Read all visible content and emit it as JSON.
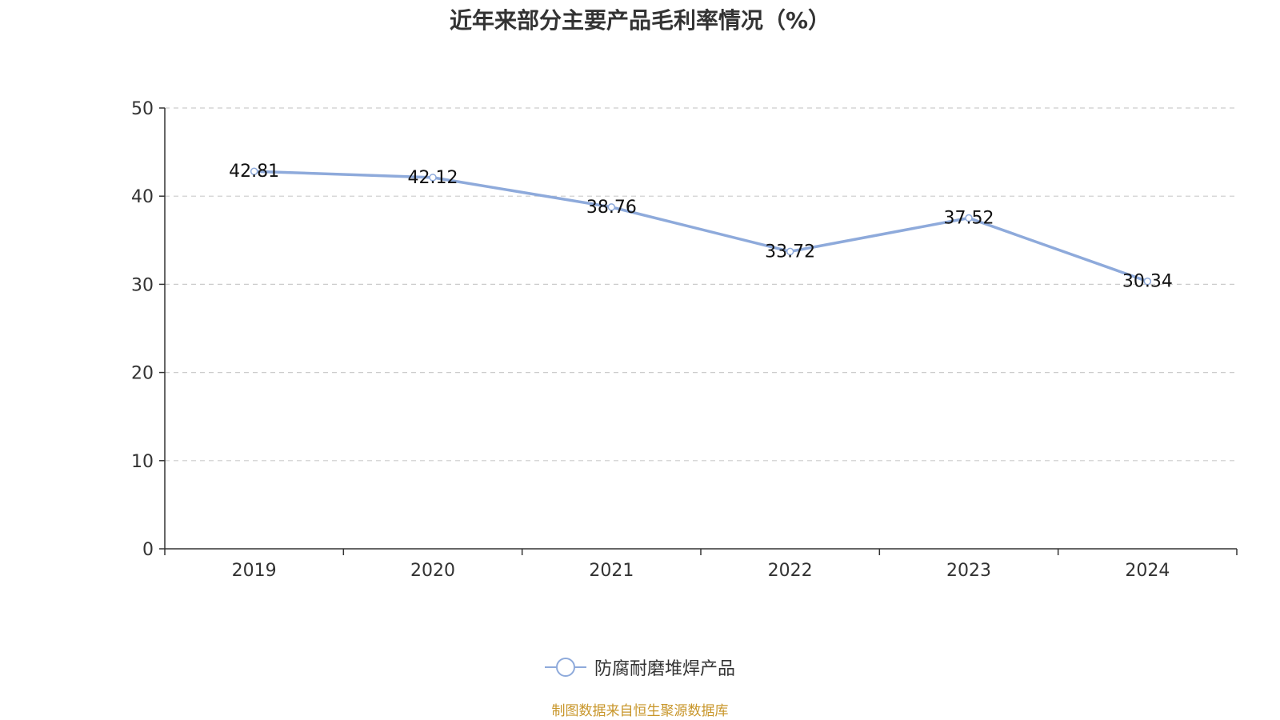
{
  "title": "近年来部分主要产品毛利率情况（%）",
  "source_note": "制图数据来自恒生聚源数据库",
  "colors": {
    "line": "#8eaadb",
    "grid": "#cccccc",
    "axis": "#333333",
    "text": "#333333",
    "source": "#c8962a"
  },
  "chart_data": {
    "type": "line",
    "title": "近年来部分主要产品毛利率情况（%）",
    "categories": [
      "2019",
      "2020",
      "2021",
      "2022",
      "2023",
      "2024"
    ],
    "series": [
      {
        "name": "防腐耐磨堆焊产品",
        "values": [
          42.81,
          42.12,
          38.76,
          33.72,
          37.52,
          30.34
        ]
      }
    ],
    "ylim": [
      0,
      50
    ],
    "yticks": [
      0,
      10,
      20,
      30,
      40,
      50
    ],
    "grid": true,
    "legend_position": "bottom-center",
    "data_labels": [
      "42.81",
      "42.12",
      "38.76",
      "33.72",
      "37.52",
      "30.34"
    ]
  }
}
